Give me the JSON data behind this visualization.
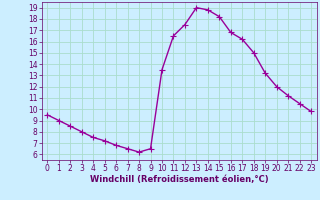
{
  "x": [
    0,
    1,
    2,
    3,
    4,
    5,
    6,
    7,
    8,
    9,
    10,
    11,
    12,
    13,
    14,
    15,
    16,
    17,
    18,
    19,
    20,
    21,
    22,
    23
  ],
  "y": [
    9.5,
    9.0,
    8.5,
    8.0,
    7.5,
    7.2,
    6.8,
    6.5,
    6.2,
    6.5,
    13.5,
    16.5,
    17.5,
    19.0,
    18.8,
    18.2,
    16.8,
    16.2,
    15.0,
    13.2,
    12.0,
    11.2,
    10.5,
    9.8
  ],
  "line_color": "#990099",
  "marker": "+",
  "markersize": 4,
  "linewidth": 1.0,
  "xlabel": "Windchill (Refroidissement éolien,°C)",
  "xlim": [
    -0.5,
    23.5
  ],
  "ylim": [
    5.5,
    19.5
  ],
  "yticks": [
    6,
    7,
    8,
    9,
    10,
    11,
    12,
    13,
    14,
    15,
    16,
    17,
    18,
    19
  ],
  "xticks": [
    0,
    1,
    2,
    3,
    4,
    5,
    6,
    7,
    8,
    9,
    10,
    11,
    12,
    13,
    14,
    15,
    16,
    17,
    18,
    19,
    20,
    21,
    22,
    23
  ],
  "bg_color": "#cceeff",
  "grid_color": "#aaddcc",
  "tick_label_fontsize": 5.5,
  "xlabel_fontsize": 6.0,
  "tick_color": "#660066",
  "xlabel_color": "#660066",
  "spine_color": "#660066"
}
